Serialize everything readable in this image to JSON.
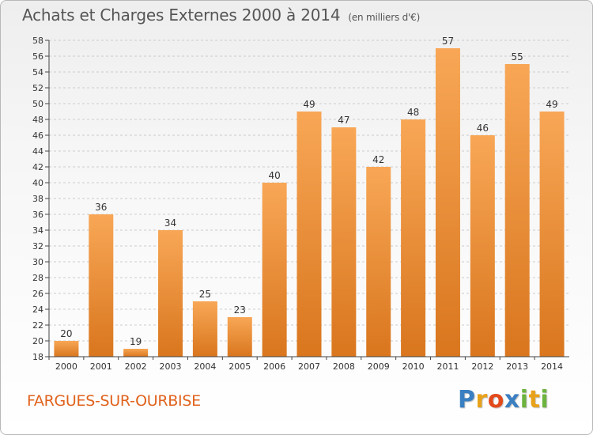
{
  "title": "Achats et Charges Externes 2000 à 2014",
  "unit": "(en milliers d'€)",
  "city": "FARGUES-SUR-OURBISE",
  "logo": {
    "text": "Proxiti",
    "letters": [
      "P",
      "r",
      "o",
      "x",
      "i",
      "t",
      "i"
    ]
  },
  "colors": {
    "bar_light": "#f8a756",
    "bar_dark": "#d9761e",
    "grid": "#cccccc",
    "axis": "#444444",
    "label": "#333333",
    "city": "#e0621c"
  },
  "chart_data": {
    "type": "bar",
    "categories": [
      "2000",
      "2001",
      "2002",
      "2003",
      "2004",
      "2005",
      "2006",
      "2007",
      "2008",
      "2009",
      "2010",
      "2011",
      "2012",
      "2013",
      "2014"
    ],
    "values": [
      20,
      36,
      19,
      34,
      25,
      23,
      40,
      49,
      47,
      42,
      48,
      57,
      46,
      55,
      49
    ],
    "ylim": [
      18,
      58
    ],
    "ytick_step": 2,
    "grid": true,
    "title": "Achats et Charges Externes 2000 à 2014",
    "xlabel": "",
    "ylabel": ""
  }
}
